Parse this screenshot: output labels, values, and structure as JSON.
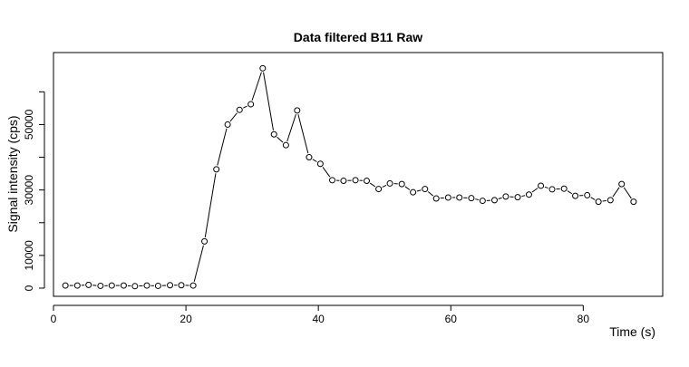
{
  "chart_data": {
    "type": "line",
    "title": "Data filtered B11 Raw",
    "xlabel": "Time (s)",
    "ylabel": "Signal intensity (cps)",
    "xlim": [
      0,
      92
    ],
    "ylim": [
      -2500,
      72000
    ],
    "x_ticks": [
      0,
      20,
      40,
      60,
      80
    ],
    "y_ticks": [
      0,
      10000,
      20000,
      30000,
      40000,
      50000,
      60000
    ],
    "y_tick_labels": [
      {
        "value": 0,
        "label": "0"
      },
      {
        "value": 10000,
        "label": "10000"
      },
      {
        "value": 30000,
        "label": "30000"
      },
      {
        "value": 50000,
        "label": "50000"
      }
    ],
    "grid": false,
    "marker": "open-circle",
    "series": [
      {
        "x": [
          1.8,
          3.6,
          5.3,
          7.1,
          8.8,
          10.6,
          12.3,
          14.1,
          15.8,
          17.6,
          19.3,
          21.1,
          22.8,
          24.6,
          26.3,
          28.1,
          29.8,
          31.6,
          33.3,
          35.1,
          36.8,
          38.6,
          40.3,
          42.1,
          43.8,
          45.6,
          47.3,
          49.1,
          50.8,
          52.6,
          54.3,
          56.1,
          57.8,
          59.6,
          61.3,
          63.1,
          64.8,
          66.6,
          68.3,
          70.1,
          71.8,
          73.6,
          75.3,
          77.1,
          78.8,
          80.6,
          82.3,
          84.1,
          85.8,
          87.6
        ],
        "y": [
          800,
          800,
          1000,
          700,
          800,
          800,
          600,
          800,
          700,
          900,
          900,
          800,
          14300,
          36300,
          50000,
          54500,
          56200,
          67200,
          47000,
          43700,
          54300,
          40000,
          38000,
          33000,
          32800,
          33000,
          32800,
          30300,
          32000,
          31800,
          29300,
          30300,
          27400,
          27700,
          27700,
          27500,
          26700,
          26900,
          28000,
          27800,
          28600,
          31300,
          30200,
          30400,
          28200,
          28400,
          26400,
          26900,
          31800,
          26400
        ]
      }
    ]
  }
}
